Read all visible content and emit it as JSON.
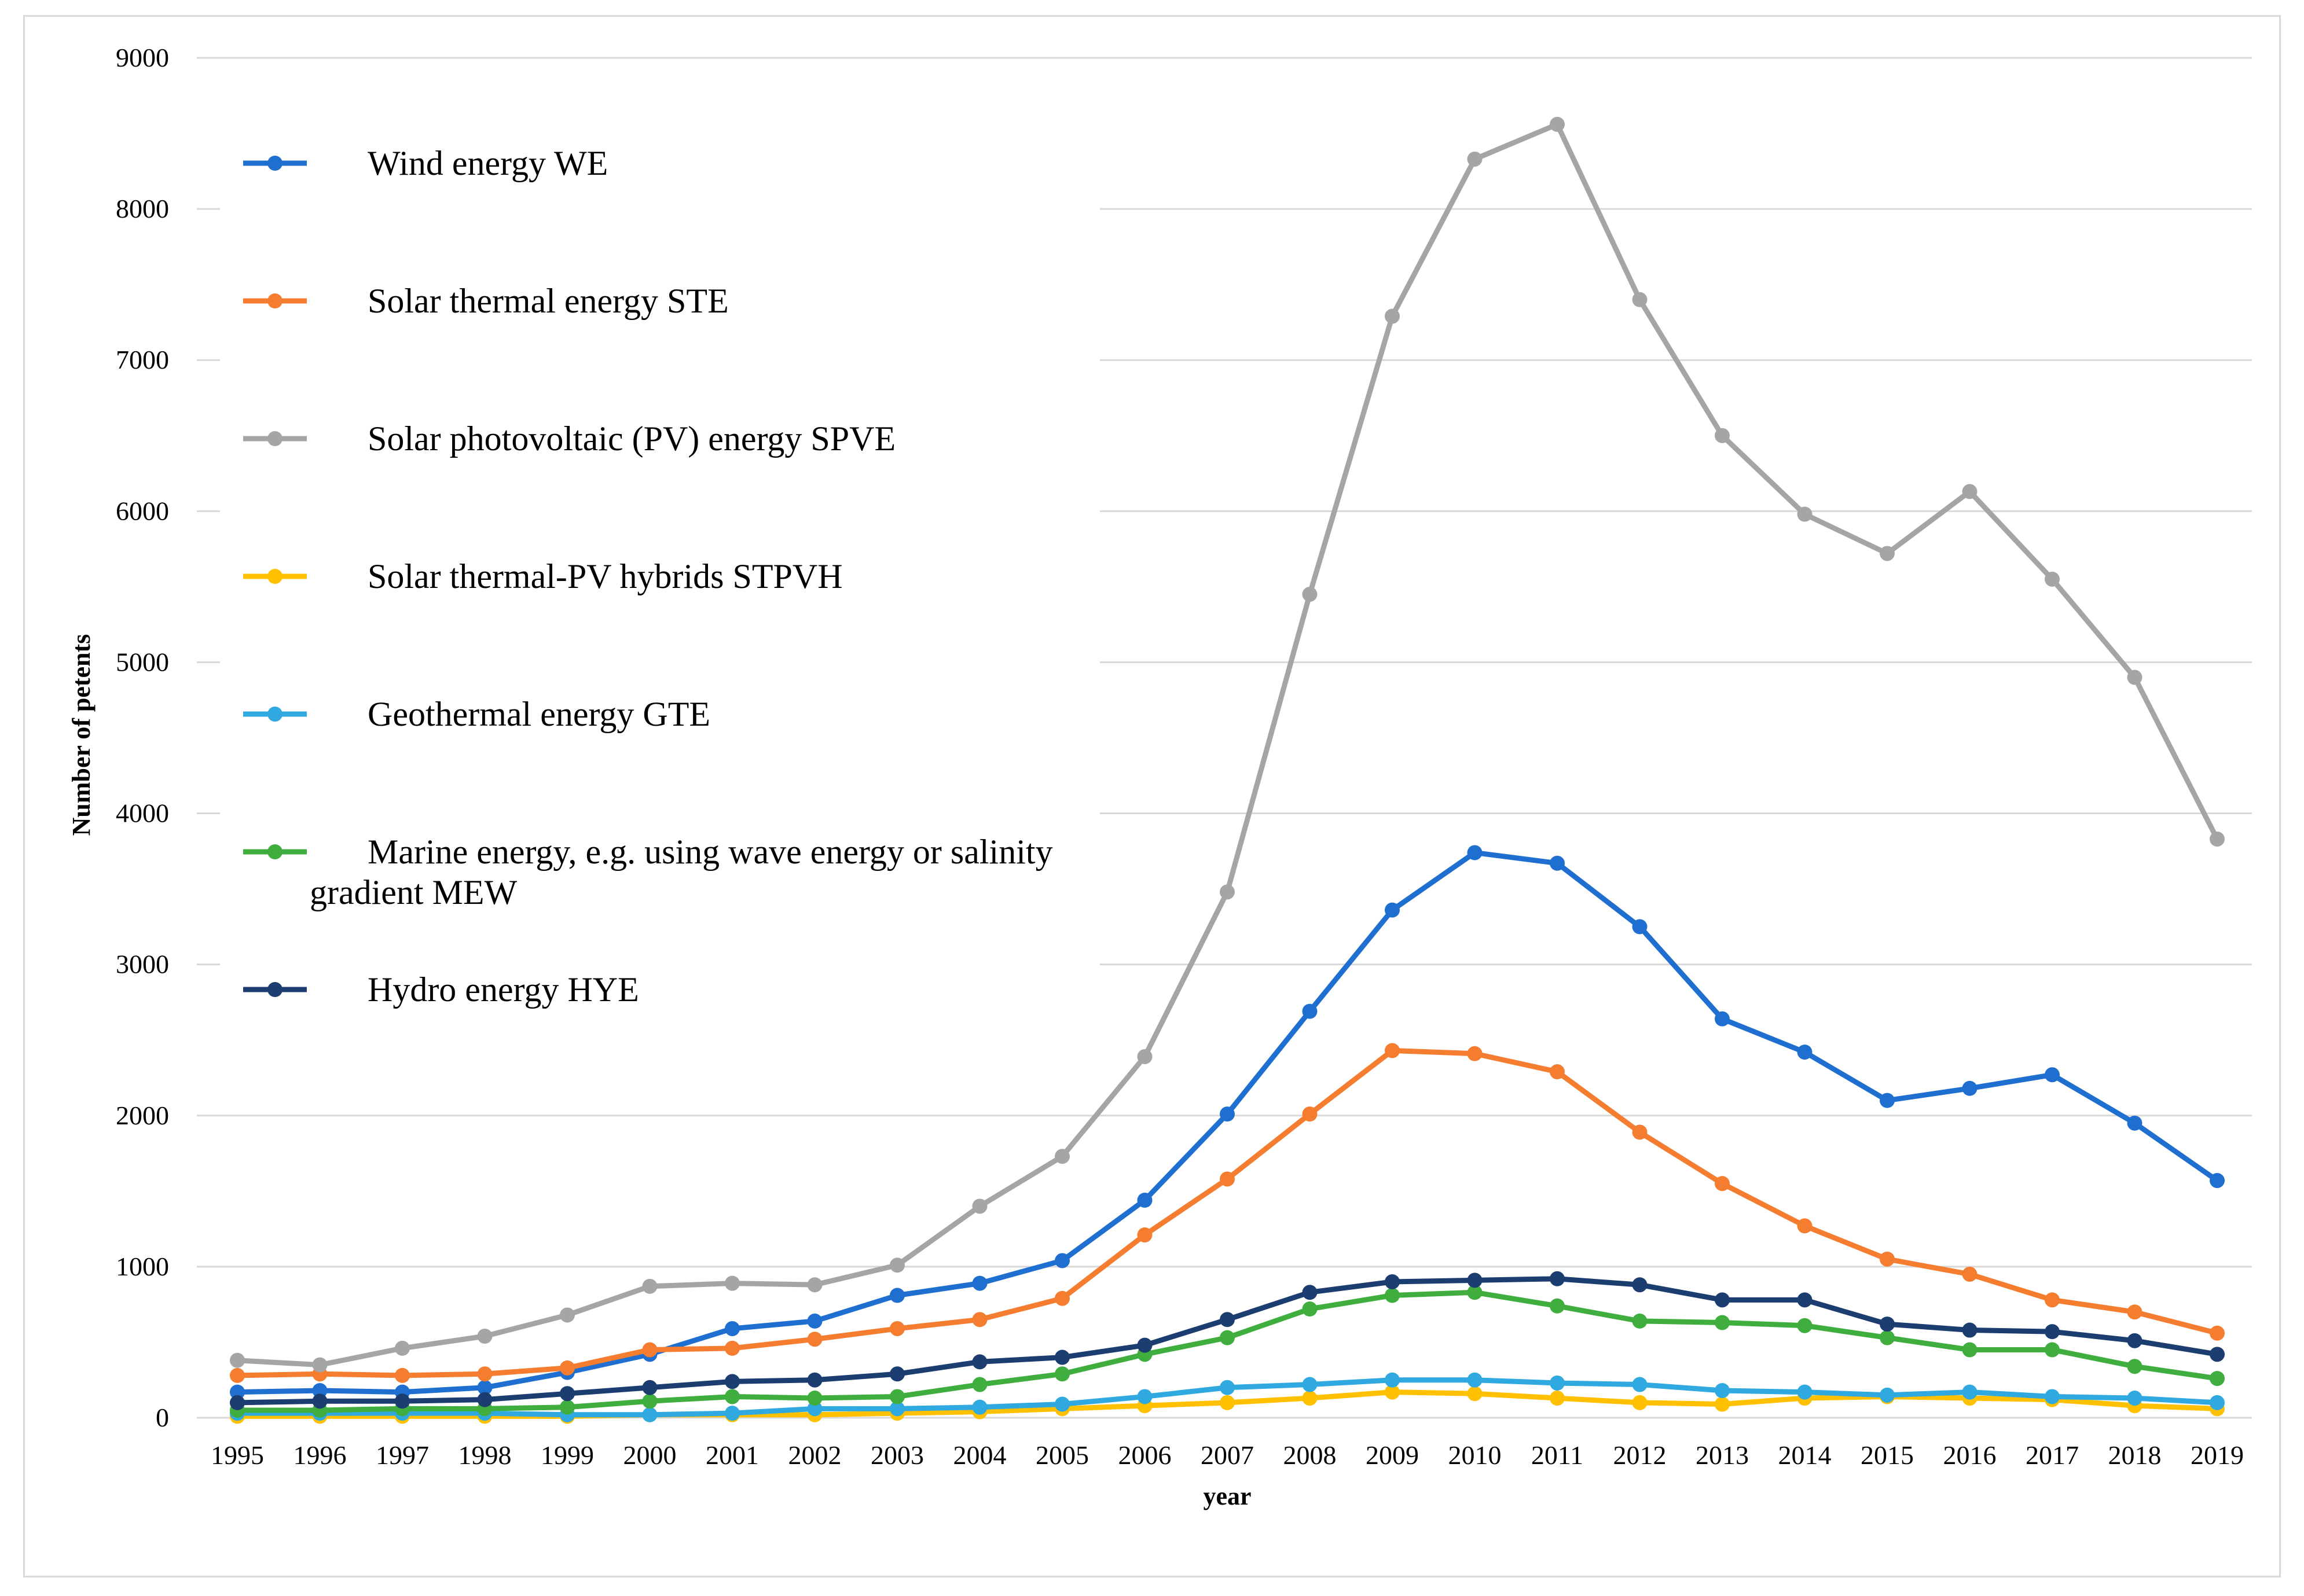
{
  "chart_data": {
    "type": "line",
    "title": "",
    "xlabel": "year",
    "ylabel": "Number of petents",
    "ylim": [
      0,
      9000
    ],
    "yticks": [
      0,
      1000,
      2000,
      3000,
      4000,
      5000,
      6000,
      7000,
      8000,
      9000
    ],
    "grid": true,
    "legend_position": "upper-left",
    "categories": [
      "1995",
      "1996",
      "1997",
      "1998",
      "1999",
      "2000",
      "2001",
      "2002",
      "2003",
      "2004",
      "2005",
      "2006",
      "2007",
      "2008",
      "2009",
      "2010",
      "2011",
      "2012",
      "2013",
      "2014",
      "2015",
      "2016",
      "2017",
      "2018",
      "2019"
    ],
    "series": [
      {
        "name": "Wind energy WE",
        "color": "#1f6fd0",
        "values": [
          170,
          180,
          170,
          200,
          300,
          420,
          590,
          640,
          810,
          890,
          1040,
          1440,
          2010,
          2690,
          3360,
          3740,
          3670,
          3250,
          2640,
          2420,
          2100,
          2180,
          2270,
          1950,
          1570
        ]
      },
      {
        "name": "Solar thermal energy STE",
        "color": "#f47d30",
        "values": [
          280,
          290,
          280,
          290,
          330,
          450,
          460,
          520,
          590,
          650,
          790,
          1210,
          1580,
          2010,
          2430,
          2410,
          2290,
          1890,
          1550,
          1270,
          1050,
          950,
          780,
          700,
          560
        ]
      },
      {
        "name": "Solar photovoltaic (PV) energy SPVE",
        "color": "#a5a5a5",
        "values": [
          380,
          350,
          460,
          540,
          680,
          870,
          890,
          880,
          1010,
          1400,
          1730,
          2390,
          3480,
          5450,
          7290,
          8330,
          8560,
          7400,
          6500,
          5980,
          5720,
          6130,
          5550,
          4900,
          3830
        ]
      },
      {
        "name": "Solar thermal-PV hybrids STPVH",
        "color": "#ffc000",
        "values": [
          10,
          10,
          10,
          10,
          10,
          20,
          20,
          20,
          30,
          40,
          60,
          80,
          100,
          130,
          170,
          160,
          130,
          100,
          90,
          130,
          140,
          130,
          120,
          80,
          60
        ]
      },
      {
        "name": "Geothermal energy GTE",
        "color": "#2fa9e0",
        "values": [
          30,
          30,
          30,
          30,
          20,
          20,
          30,
          60,
          60,
          70,
          90,
          140,
          200,
          220,
          250,
          250,
          230,
          220,
          180,
          170,
          150,
          170,
          140,
          130,
          100
        ]
      },
      {
        "name": "Marine energy, e.g. using wave energy or salinity gradient MEW",
        "color": "#3fae3f",
        "values": [
          50,
          50,
          60,
          60,
          70,
          110,
          140,
          130,
          140,
          220,
          290,
          420,
          530,
          720,
          810,
          830,
          740,
          640,
          630,
          610,
          530,
          450,
          450,
          340,
          260
        ]
      },
      {
        "name": "Hydro energy HYE",
        "color": "#1b3d6f",
        "values": [
          100,
          110,
          110,
          120,
          160,
          200,
          240,
          250,
          290,
          370,
          400,
          480,
          650,
          830,
          900,
          910,
          920,
          880,
          780,
          780,
          620,
          580,
          570,
          510,
          420
        ]
      }
    ]
  },
  "legend": {
    "items": [
      {
        "line1": "Wind energy WE",
        "line2": ""
      },
      {
        "line1": "Solar thermal energy STE",
        "line2": ""
      },
      {
        "line1": "Solar photovoltaic (PV) energy SPVE",
        "line2": ""
      },
      {
        "line1": "Solar thermal-PV hybrids STPVH",
        "line2": ""
      },
      {
        "line1": "Geothermal energy GTE",
        "line2": ""
      },
      {
        "line1": "Marine energy, e.g. using wave energy or salinity",
        "line2": "gradient MEW"
      },
      {
        "line1": "Hydro energy HYE",
        "line2": ""
      }
    ]
  }
}
